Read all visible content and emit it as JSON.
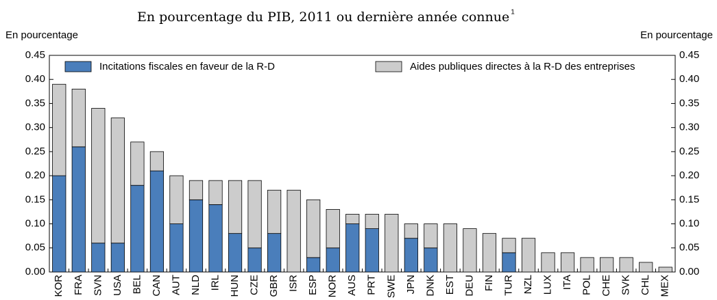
{
  "chart_data": {
    "type": "stacked_bar",
    "title": "En pourcentage du PIB, 2011 ou dernière année connue",
    "title_superscript": "1",
    "y_label": "En pourcentage",
    "y2_label": "En pourcentage",
    "categories": [
      "KOR",
      "FRA",
      "SVN",
      "USA",
      "BEL",
      "CAN",
      "AUT",
      "NLD",
      "IRL",
      "HUN",
      "CZE",
      "GBR",
      "ISR",
      "ESP",
      "NOR",
      "AUS",
      "PRT",
      "SWE",
      "JPN",
      "DNK",
      "EST",
      "DEU",
      "FIN",
      "TUR",
      "NZL",
      "LUX",
      "ITA",
      "POL",
      "CHE",
      "SVK",
      "CHL",
      "MEX"
    ],
    "series": [
      {
        "name": "Incitations fiscales en faveur de la R-D",
        "color": "#4a7ebb",
        "values": [
          0.2,
          0.26,
          0.06,
          0.06,
          0.18,
          0.21,
          0.1,
          0.15,
          0.14,
          0.08,
          0.05,
          0.08,
          0,
          0.03,
          0.05,
          0.1,
          0.09,
          0,
          0.07,
          0.05,
          0,
          0,
          0,
          0.04,
          0,
          0,
          0,
          0,
          0,
          0,
          0,
          0
        ]
      },
      {
        "name": "Aides publiques directes à la R-D des entreprises",
        "color": "#cccccc",
        "values": [
          0.19,
          0.12,
          0.28,
          0.26,
          0.09,
          0.04,
          0.1,
          0.04,
          0.05,
          0.11,
          0.14,
          0.09,
          0.17,
          0.12,
          0.08,
          0.02,
          0.03,
          0.12,
          0.03,
          0.05,
          0.1,
          0.09,
          0.08,
          0.03,
          0.07,
          0.04,
          0.04,
          0.03,
          0.03,
          0.03,
          0.02,
          0.01
        ]
      }
    ],
    "ylim": [
      0,
      0.45
    ],
    "yticks": [
      {
        "value": 0,
        "label": "0.00"
      },
      0.05,
      {
        "value": 0.1,
        "label": "0.10"
      },
      0.15,
      {
        "value": 0.2,
        "label": "0.20"
      },
      0.25,
      {
        "value": 0.3,
        "label": "0.30"
      },
      0.35,
      {
        "value": 0.4,
        "label": "0.40"
      },
      0.45
    ]
  }
}
